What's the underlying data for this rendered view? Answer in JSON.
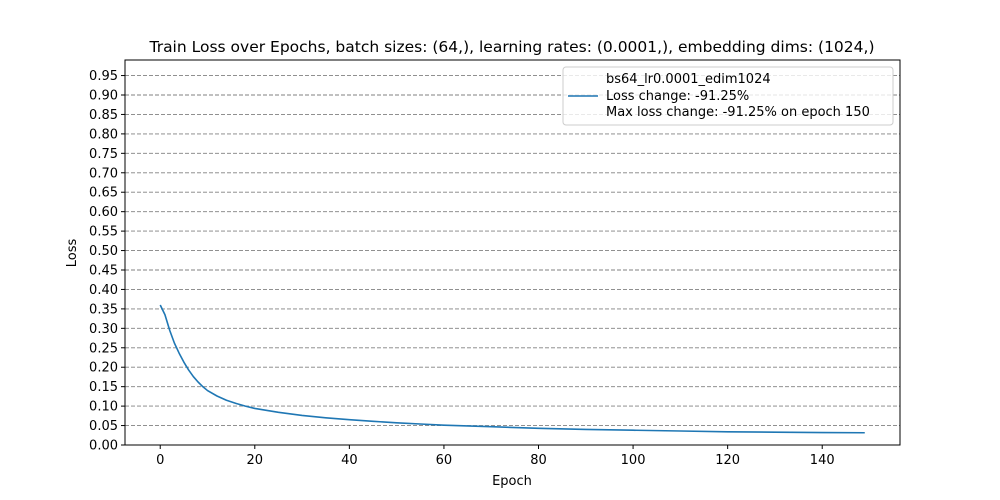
{
  "chart_data": {
    "type": "line",
    "title": "Train Loss over Epochs, batch sizes: (64,), learning rates: (0.0001,), embedding dims: (1024,)",
    "xlabel": "Epoch",
    "ylabel": "Loss",
    "xlim": [
      -7.45,
      156.45
    ],
    "ylim": [
      0,
      0.99
    ],
    "xticks": [
      0,
      20,
      40,
      60,
      80,
      100,
      120,
      140
    ],
    "yticks": [
      0.0,
      0.05,
      0.1,
      0.15,
      0.2,
      0.25,
      0.3,
      0.35,
      0.4,
      0.45,
      0.5,
      0.55,
      0.6,
      0.65,
      0.7,
      0.75,
      0.8,
      0.85,
      0.9,
      0.95
    ],
    "ytick_labels": [
      "0.00",
      "0.05",
      "0.10",
      "0.15",
      "0.20",
      "0.25",
      "0.30",
      "0.35",
      "0.40",
      "0.45",
      "0.50",
      "0.55",
      "0.60",
      "0.65",
      "0.70",
      "0.75",
      "0.80",
      "0.85",
      "0.90",
      "0.95"
    ],
    "grid": "y-dashed",
    "legend_position": "top-right",
    "legend": {
      "header": "bs64_lr0.0001_edim1024",
      "entries": [
        {
          "label": "Loss change: -91.25%",
          "color": "#1f77b4"
        },
        {
          "label": "Max loss change: -91.25% on epoch 150",
          "color": null
        }
      ]
    },
    "series": [
      {
        "color": "#1f77b4",
        "x": [
          0,
          1,
          2,
          3,
          4,
          5,
          6,
          7,
          8,
          9,
          10,
          12,
          14,
          16,
          18,
          20,
          25,
          30,
          35,
          40,
          45,
          50,
          55,
          60,
          70,
          80,
          90,
          100,
          110,
          120,
          130,
          140,
          149
        ],
        "y": [
          0.36,
          0.335,
          0.295,
          0.262,
          0.236,
          0.213,
          0.193,
          0.176,
          0.162,
          0.15,
          0.14,
          0.126,
          0.115,
          0.107,
          0.1,
          0.094,
          0.084,
          0.076,
          0.07,
          0.065,
          0.061,
          0.057,
          0.054,
          0.051,
          0.047,
          0.043,
          0.04,
          0.038,
          0.036,
          0.034,
          0.033,
          0.032,
          0.0315
        ]
      }
    ]
  }
}
